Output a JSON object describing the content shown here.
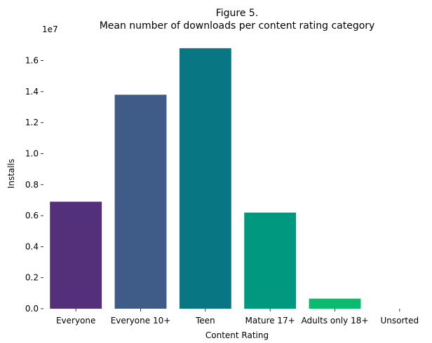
{
  "chart_data": {
    "type": "bar",
    "title_line1": "Figure 5.",
    "title_line2": "Mean number of downloads per content rating category",
    "xlabel": "Content Rating",
    "ylabel": "Installs",
    "y_multiplier": "1e7",
    "ylim": [
      0,
      1.7
    ],
    "yticks": [
      0.0,
      0.2,
      0.4,
      0.6,
      0.8,
      1.0,
      1.2,
      1.4,
      1.6
    ],
    "ytick_labels": [
      "0.0",
      "0.2",
      "0.4",
      "0.6",
      "0.8",
      "1.0",
      "1.2",
      "1.4",
      "1.6"
    ],
    "categories": [
      "Everyone",
      "Everyone 10+",
      "Teen",
      "Mature 17+",
      "Adults only 18+",
      "Unsorted"
    ],
    "values": [
      0.69,
      1.38,
      1.68,
      0.62,
      0.065,
      0.0
    ],
    "colors": [
      "#55307a",
      "#3e5c87",
      "#087783",
      "#019880",
      "#0aba6f",
      "#43cf58"
    ],
    "grid": false,
    "legend": "none"
  }
}
